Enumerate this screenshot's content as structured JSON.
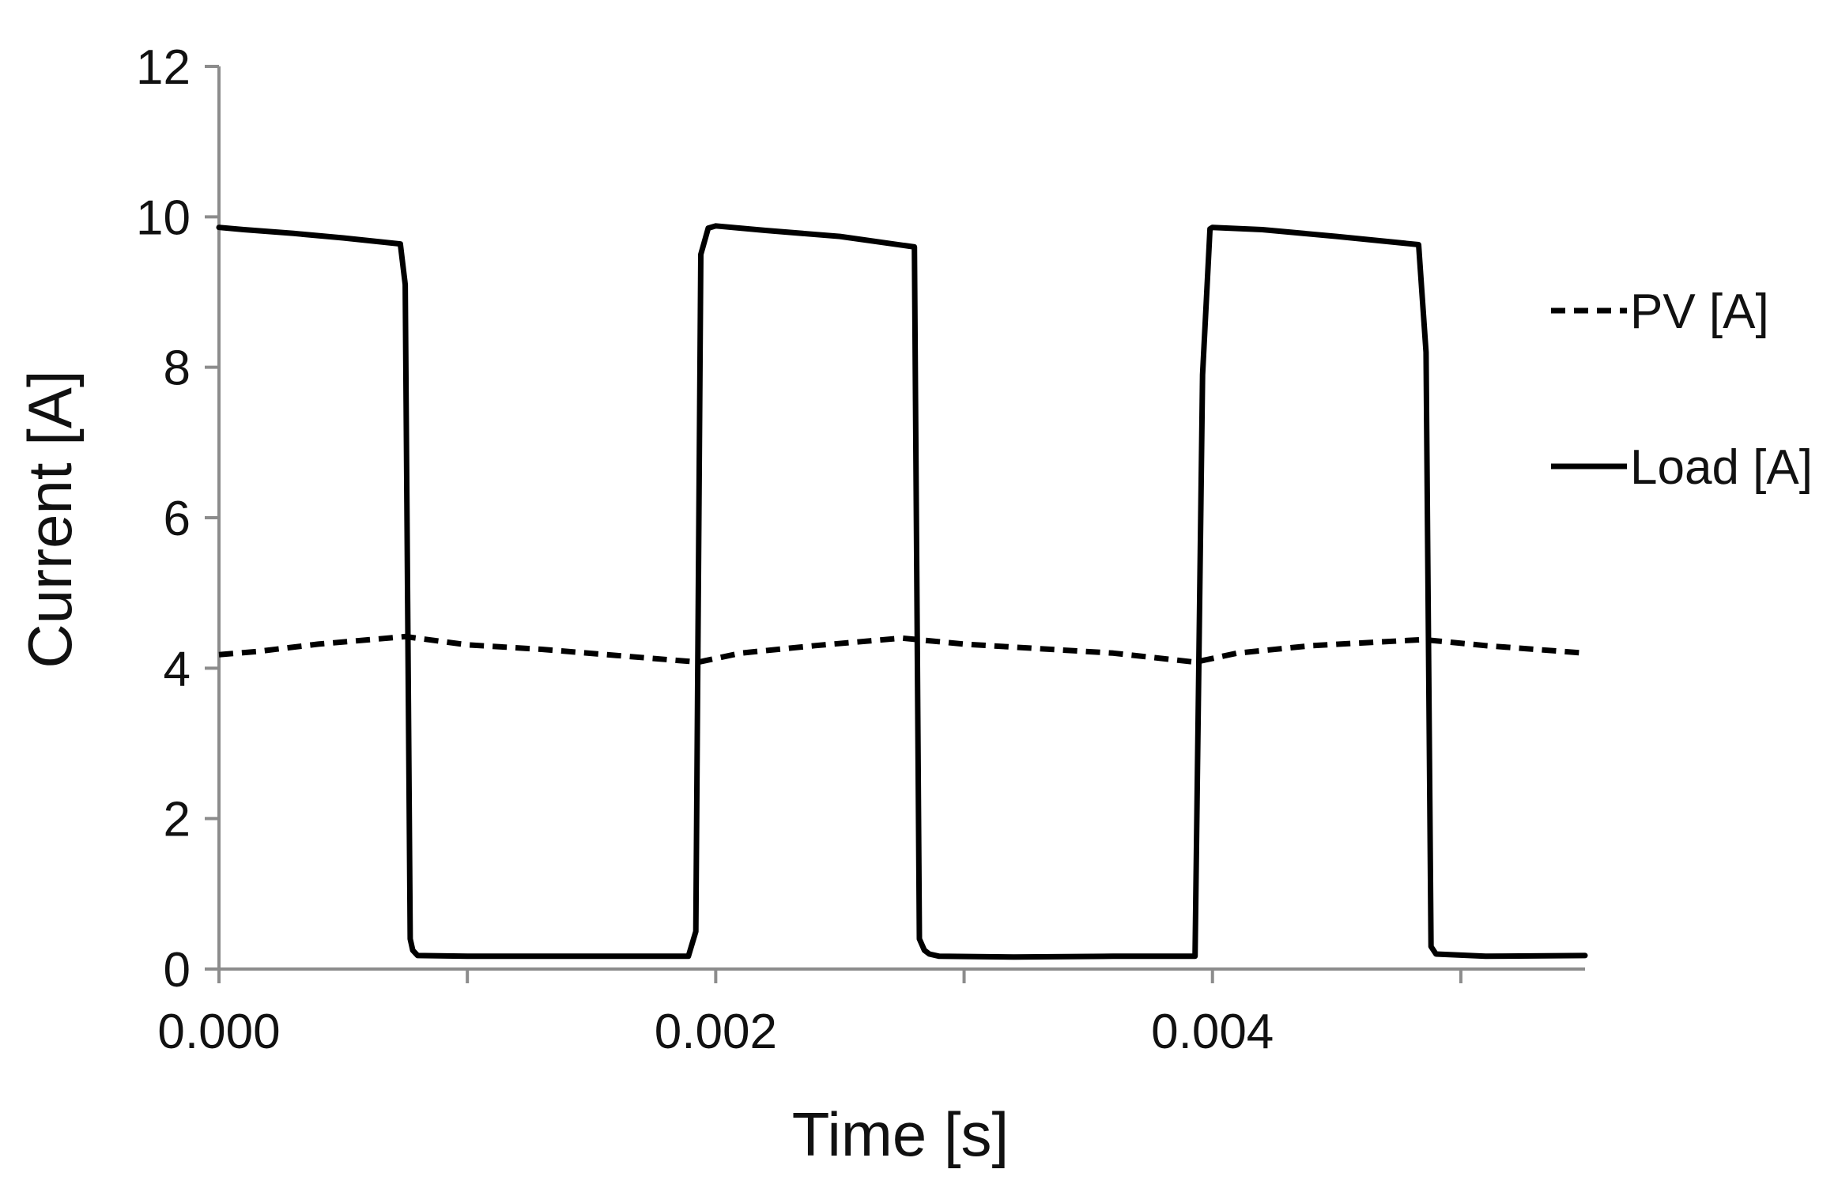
{
  "chart_data": {
    "type": "line",
    "title": "",
    "xlabel": "Time [s]",
    "ylabel": "Current [A]",
    "xlim": [
      0,
      0.0055
    ],
    "ylim": [
      0,
      12
    ],
    "x_ticks": [
      0,
      0.001,
      0.002,
      0.003,
      0.004,
      0.005
    ],
    "x_tick_labels": [
      "0.000",
      "",
      "0.002",
      "",
      "0.004",
      ""
    ],
    "y_ticks": [
      0,
      2,
      4,
      6,
      8,
      10,
      12
    ],
    "y_tick_labels": [
      "0",
      "2",
      "4",
      "6",
      "8",
      "10",
      "12"
    ],
    "grid": false,
    "legend_position": "right",
    "colors": {
      "axis": "#8c8c8c",
      "series": "#000000"
    },
    "series": [
      {
        "name": "PV [A]",
        "style": "dashed",
        "x": [
          0,
          0.00015,
          0.0004,
          0.00075,
          0.001,
          0.0013,
          0.0016,
          0.00193,
          0.0021,
          0.0024,
          0.00275,
          0.003,
          0.0033,
          0.0036,
          0.00393,
          0.0041,
          0.0044,
          0.00485,
          0.0051,
          0.0055
        ],
        "values": [
          4.18,
          4.22,
          4.32,
          4.42,
          4.31,
          4.25,
          4.17,
          4.08,
          4.2,
          4.3,
          4.4,
          4.32,
          4.26,
          4.2,
          4.08,
          4.2,
          4.3,
          4.38,
          4.3,
          4.2
        ]
      },
      {
        "name": "Load [A]",
        "style": "solid",
        "x": [
          0,
          0.0001,
          0.0003,
          0.0005,
          0.00073,
          0.00075,
          0.00077,
          0.00078,
          0.0008,
          0.001,
          0.0013,
          0.0016,
          0.00189,
          0.00192,
          0.00194,
          0.00197,
          0.002,
          0.0022,
          0.0025,
          0.0028,
          0.00282,
          0.00284,
          0.00286,
          0.0029,
          0.0032,
          0.0036,
          0.00393,
          0.00396,
          0.00399,
          0.004,
          0.0042,
          0.0045,
          0.00483,
          0.00486,
          0.00488,
          0.0049,
          0.0051,
          0.0055
        ],
        "values": [
          9.86,
          9.83,
          9.78,
          9.72,
          9.64,
          9.1,
          0.4,
          0.25,
          0.18,
          0.17,
          0.17,
          0.17,
          0.17,
          0.5,
          9.5,
          9.85,
          9.88,
          9.82,
          9.74,
          9.6,
          0.4,
          0.25,
          0.2,
          0.17,
          0.16,
          0.17,
          0.17,
          7.9,
          9.84,
          9.86,
          9.83,
          9.74,
          9.63,
          8.2,
          0.3,
          0.2,
          0.17,
          0.18
        ]
      }
    ]
  }
}
